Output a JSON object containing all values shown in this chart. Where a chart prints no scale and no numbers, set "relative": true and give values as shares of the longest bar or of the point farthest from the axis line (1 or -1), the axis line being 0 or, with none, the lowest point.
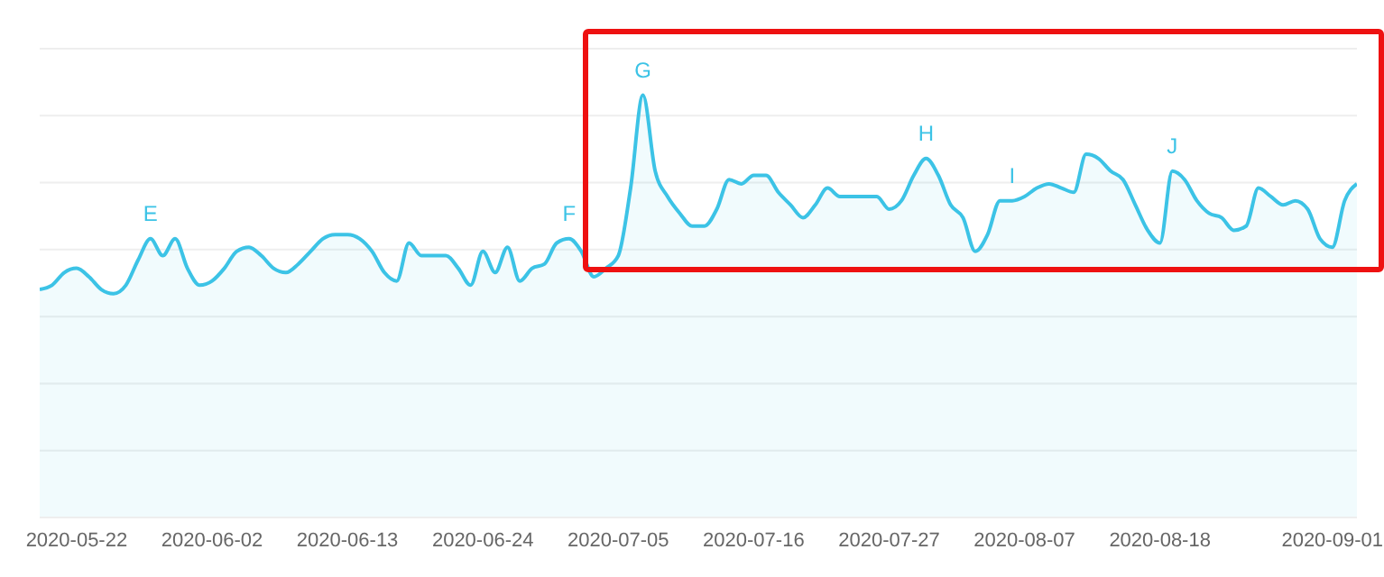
{
  "chart_data": {
    "type": "area",
    "relative": true,
    "grid": "y",
    "xlim": [
      "2020-05-19",
      "2020-09-03"
    ],
    "xticks": [
      "2020-05-22",
      "2020-06-02",
      "2020-06-13",
      "2020-06-24",
      "2020-07-05",
      "2020-07-16",
      "2020-07-27",
      "2020-08-07",
      "2020-08-18",
      "2020-09-01"
    ],
    "x": [
      "2020-05-19",
      "2020-05-20",
      "2020-05-21",
      "2020-05-22",
      "2020-05-23",
      "2020-05-24",
      "2020-05-25",
      "2020-05-26",
      "2020-05-27",
      "2020-05-28",
      "2020-05-29",
      "2020-05-30",
      "2020-05-31",
      "2020-06-01",
      "2020-06-02",
      "2020-06-03",
      "2020-06-04",
      "2020-06-05",
      "2020-06-06",
      "2020-06-07",
      "2020-06-08",
      "2020-06-09",
      "2020-06-10",
      "2020-06-11",
      "2020-06-12",
      "2020-06-13",
      "2020-06-14",
      "2020-06-15",
      "2020-06-16",
      "2020-06-17",
      "2020-06-18",
      "2020-06-19",
      "2020-06-20",
      "2020-06-21",
      "2020-06-22",
      "2020-06-23",
      "2020-06-24",
      "2020-06-25",
      "2020-06-26",
      "2020-06-27",
      "2020-06-28",
      "2020-06-29",
      "2020-06-30",
      "2020-07-01",
      "2020-07-02",
      "2020-07-03",
      "2020-07-04",
      "2020-07-05",
      "2020-07-06",
      "2020-07-07",
      "2020-07-08",
      "2020-07-09",
      "2020-07-10",
      "2020-07-11",
      "2020-07-12",
      "2020-07-13",
      "2020-07-14",
      "2020-07-15",
      "2020-07-16",
      "2020-07-17",
      "2020-07-18",
      "2020-07-19",
      "2020-07-20",
      "2020-07-21",
      "2020-07-22",
      "2020-07-23",
      "2020-07-24",
      "2020-07-25",
      "2020-07-26",
      "2020-07-27",
      "2020-07-28",
      "2020-07-29",
      "2020-07-30",
      "2020-07-31",
      "2020-08-01",
      "2020-08-02",
      "2020-08-03",
      "2020-08-04",
      "2020-08-05",
      "2020-08-06",
      "2020-08-07",
      "2020-08-08",
      "2020-08-09",
      "2020-08-10",
      "2020-08-11",
      "2020-08-12",
      "2020-08-13",
      "2020-08-14",
      "2020-08-15",
      "2020-08-16",
      "2020-08-17",
      "2020-08-18",
      "2020-08-19",
      "2020-08-20",
      "2020-08-21",
      "2020-08-22",
      "2020-08-23",
      "2020-08-24",
      "2020-08-25",
      "2020-08-26",
      "2020-08-27",
      "2020-08-28",
      "2020-08-29",
      "2020-08-30",
      "2020-08-31",
      "2020-09-01",
      "2020-09-02",
      "2020-09-03"
    ],
    "series": [
      {
        "color": "#3cc3e6",
        "values": [
          0.54,
          0.55,
          0.58,
          0.59,
          0.57,
          0.54,
          0.53,
          0.55,
          0.61,
          0.66,
          0.62,
          0.66,
          0.59,
          0.55,
          0.56,
          0.59,
          0.63,
          0.64,
          0.62,
          0.59,
          0.58,
          0.6,
          0.63,
          0.66,
          0.67,
          0.67,
          0.66,
          0.63,
          0.58,
          0.56,
          0.65,
          0.62,
          0.62,
          0.62,
          0.59,
          0.55,
          0.63,
          0.58,
          0.64,
          0.56,
          0.59,
          0.6,
          0.65,
          0.66,
          0.63,
          0.57,
          0.59,
          0.62,
          0.78,
          1,
          0.82,
          0.76,
          0.72,
          0.69,
          0.69,
          0.73,
          0.8,
          0.79,
          0.81,
          0.81,
          0.77,
          0.74,
          0.71,
          0.74,
          0.78,
          0.76,
          0.76,
          0.76,
          0.76,
          0.73,
          0.75,
          0.81,
          0.85,
          0.81,
          0.74,
          0.71,
          0.63,
          0.67,
          0.75,
          0.75,
          0.76,
          0.78,
          0.79,
          0.78,
          0.77,
          0.86,
          0.85,
          0.82,
          0.8,
          0.74,
          0.68,
          0.65,
          0.82,
          0.8,
          0.75,
          0.72,
          0.71,
          0.68,
          0.69,
          0.78,
          0.76,
          0.74,
          0.75,
          0.73,
          0.66,
          0.64,
          0.75,
          0.79
        ]
      }
    ],
    "annotations": [
      {
        "text": "E",
        "x": "2020-05-28",
        "y": 0.66
      },
      {
        "text": "F",
        "x": "2020-07-01",
        "y": 0.66
      },
      {
        "text": "G",
        "x": "2020-07-07",
        "y": 1
      },
      {
        "text": "H",
        "x": "2020-07-30",
        "y": 0.85
      },
      {
        "text": "I",
        "x": "2020-08-06",
        "y": 0.75
      },
      {
        "text": "J",
        "x": "2020-08-19",
        "y": 0.82
      }
    ]
  }
}
